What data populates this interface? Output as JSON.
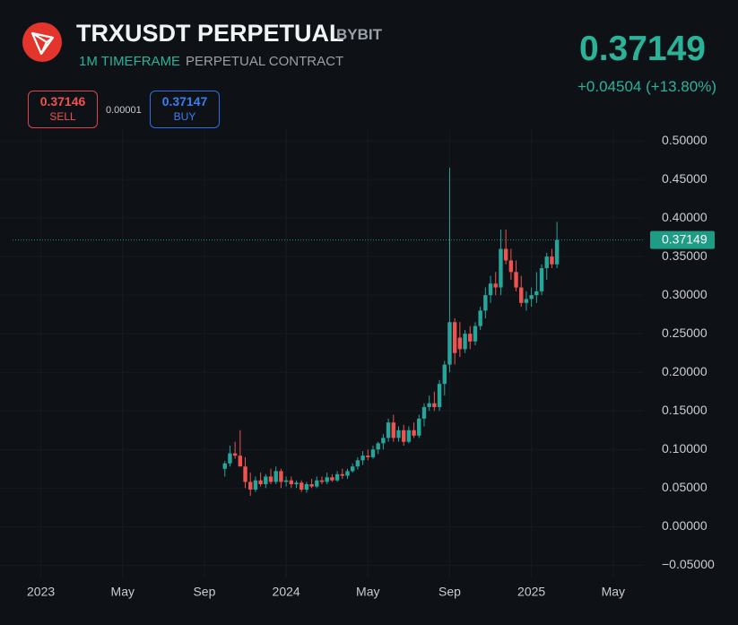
{
  "header": {
    "title": "TRXUSDT PERPETUAL",
    "exchange": "BYBIT",
    "timeframe": "1M TIMEFRAME",
    "contract": "PERPETUAL CONTRACT",
    "last_price": "0.37149",
    "change": "+0.04504 (+13.80%)",
    "sell": {
      "price": "0.37146",
      "label": "SELL"
    },
    "spread": "0.00001",
    "buy": {
      "price": "0.37147",
      "label": "BUY"
    }
  },
  "chart_data": {
    "type": "candlestick",
    "up_color": "#26a69a",
    "down_color": "#ef5350",
    "grid": true,
    "x": [
      9,
      9.25,
      9.5,
      9.75,
      10,
      10.25,
      10.5,
      10.75,
      11,
      11.25,
      11.5,
      11.75,
      12,
      12.25,
      12.5,
      12.75,
      13,
      13.25,
      13.5,
      13.75,
      14,
      14.25,
      14.5,
      14.75,
      15,
      15.25,
      15.5,
      15.75,
      16,
      16.25,
      16.5,
      16.75,
      17,
      17.25,
      17.5,
      17.75,
      18,
      18.25,
      18.5,
      18.75,
      19,
      19.25,
      19.5,
      19.75,
      20,
      20.25,
      20.5,
      20.75,
      21,
      21.25,
      21.5,
      21.75,
      22,
      22.25,
      22.5,
      22.75,
      23,
      23.25,
      23.5,
      23.75,
      24,
      24.25,
      24.5,
      24.75,
      25,
      25.25
    ],
    "open": [
      0.075,
      0.082,
      0.095,
      0.092,
      0.078,
      0.058,
      0.048,
      0.06,
      0.055,
      0.065,
      0.058,
      0.072,
      0.058,
      0.06,
      0.055,
      0.057,
      0.048,
      0.055,
      0.052,
      0.06,
      0.058,
      0.064,
      0.06,
      0.068,
      0.066,
      0.072,
      0.078,
      0.086,
      0.092,
      0.09,
      0.1,
      0.108,
      0.115,
      0.135,
      0.115,
      0.125,
      0.11,
      0.125,
      0.118,
      0.14,
      0.155,
      0.16,
      0.155,
      0.185,
      0.21,
      0.265,
      0.245,
      0.23,
      0.25,
      0.24,
      0.26,
      0.28,
      0.3,
      0.315,
      0.31,
      0.36,
      0.345,
      0.33,
      0.31,
      0.29,
      0.295,
      0.3,
      0.305,
      0.335,
      0.35,
      0.34
    ],
    "high": [
      0.085,
      0.105,
      0.11,
      0.125,
      0.09,
      0.07,
      0.065,
      0.07,
      0.068,
      0.075,
      0.078,
      0.075,
      0.065,
      0.065,
      0.06,
      0.06,
      0.058,
      0.062,
      0.065,
      0.065,
      0.07,
      0.068,
      0.072,
      0.075,
      0.075,
      0.082,
      0.09,
      0.098,
      0.1,
      0.105,
      0.11,
      0.12,
      0.14,
      0.145,
      0.13,
      0.132,
      0.13,
      0.135,
      0.145,
      0.16,
      0.17,
      0.175,
      0.19,
      0.215,
      0.465,
      0.27,
      0.265,
      0.255,
      0.26,
      0.265,
      0.285,
      0.31,
      0.325,
      0.33,
      0.385,
      0.385,
      0.36,
      0.345,
      0.325,
      0.305,
      0.31,
      0.33,
      0.34,
      0.355,
      0.36,
      0.395
    ],
    "low": [
      0.065,
      0.078,
      0.088,
      0.08,
      0.05,
      0.04,
      0.045,
      0.052,
      0.05,
      0.055,
      0.055,
      0.05,
      0.052,
      0.05,
      0.05,
      0.045,
      0.044,
      0.05,
      0.05,
      0.055,
      0.055,
      0.058,
      0.058,
      0.062,
      0.062,
      0.07,
      0.074,
      0.08,
      0.086,
      0.088,
      0.094,
      0.1,
      0.11,
      0.11,
      0.11,
      0.105,
      0.108,
      0.115,
      0.115,
      0.13,
      0.15,
      0.15,
      0.15,
      0.17,
      0.2,
      0.21,
      0.22,
      0.225,
      0.23,
      0.235,
      0.255,
      0.27,
      0.29,
      0.3,
      0.3,
      0.34,
      0.32,
      0.305,
      0.285,
      0.28,
      0.285,
      0.29,
      0.3,
      0.32,
      0.335,
      0.335
    ],
    "close": [
      0.082,
      0.095,
      0.092,
      0.078,
      0.058,
      0.048,
      0.06,
      0.055,
      0.065,
      0.058,
      0.072,
      0.058,
      0.06,
      0.055,
      0.057,
      0.048,
      0.055,
      0.052,
      0.06,
      0.058,
      0.064,
      0.06,
      0.068,
      0.066,
      0.072,
      0.078,
      0.086,
      0.092,
      0.09,
      0.1,
      0.108,
      0.115,
      0.135,
      0.115,
      0.125,
      0.11,
      0.125,
      0.118,
      0.14,
      0.155,
      0.16,
      0.155,
      0.185,
      0.21,
      0.265,
      0.225,
      0.23,
      0.25,
      0.24,
      0.26,
      0.28,
      0.3,
      0.315,
      0.31,
      0.36,
      0.345,
      0.33,
      0.31,
      0.29,
      0.295,
      0.3,
      0.305,
      0.335,
      0.35,
      0.34,
      0.37149
    ],
    "xlim": [
      -2,
      29.5
    ],
    "xticks": [
      {
        "value": 0,
        "label": "2023"
      },
      {
        "value": 4,
        "label": "May"
      },
      {
        "value": 8,
        "label": "Sep"
      },
      {
        "value": 12,
        "label": "2024"
      },
      {
        "value": 16,
        "label": "May"
      },
      {
        "value": 20,
        "label": "Sep"
      },
      {
        "value": 24,
        "label": "2025"
      },
      {
        "value": 28,
        "label": "May"
      }
    ],
    "ylim": [
      -0.067,
      0.514
    ],
    "yticks": [
      {
        "value": 0.5,
        "label": "0.50000"
      },
      {
        "value": 0.45,
        "label": "0.45000"
      },
      {
        "value": 0.4,
        "label": "0.40000"
      },
      {
        "value": 0.35,
        "label": "0.35000"
      },
      {
        "value": 0.3,
        "label": "0.30000"
      },
      {
        "value": 0.25,
        "label": "0.25000"
      },
      {
        "value": 0.2,
        "label": "0.20000"
      },
      {
        "value": 0.15,
        "label": "0.15000"
      },
      {
        "value": 0.1,
        "label": "0.10000"
      },
      {
        "value": 0.05,
        "label": "0.05000"
      },
      {
        "value": 0,
        "label": "0.00000"
      },
      {
        "value": -0.05,
        "label": "−0.05000"
      }
    ]
  }
}
